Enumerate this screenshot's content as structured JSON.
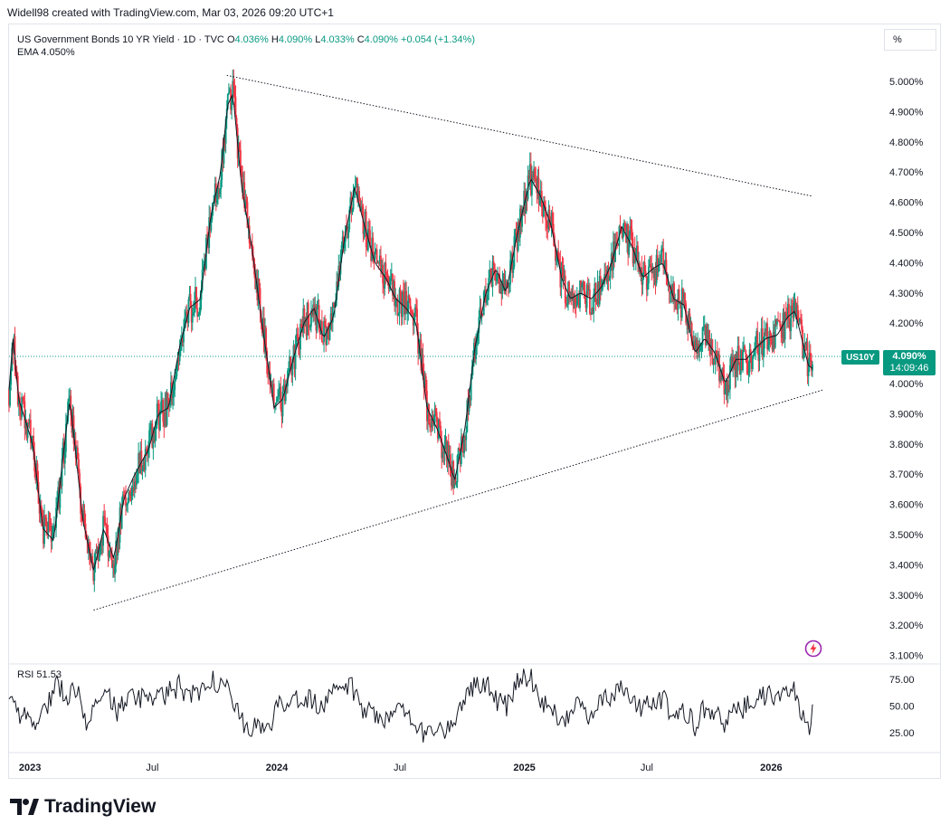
{
  "header": {
    "text": "Widell98 created with TradingView.com, Mar 03, 2026 09:20 UTC+1"
  },
  "legend": {
    "title": "US Government Bonds 10 YR Yield · 1D · TVC",
    "o_label": "O",
    "o_value": "4.036%",
    "h_label": "H",
    "h_value": "4.090%",
    "l_label": "L",
    "l_value": "4.033%",
    "c_label": "C",
    "c_value": "4.090%",
    "change": "+0.054 (+1.34%)",
    "ema_label": "EMA",
    "ema_value": "4.050%"
  },
  "scale_button": "%",
  "price_tag": {
    "symbol": "US10Y",
    "price": "4.090%",
    "countdown": "14:09:46"
  },
  "rsi": {
    "label": "RSI",
    "value": "51.53"
  },
  "brand": {
    "name": "TradingView"
  },
  "colors": {
    "up": "#089981",
    "down": "#f23645",
    "ema": "#131722",
    "rsi_line": "#131722",
    "grid_border": "#e0e3eb",
    "trendline": "#131722"
  },
  "icons": [
    "lightning-icon",
    "tradingview-logo-icon"
  ],
  "chart_data": [
    {
      "type": "candlestick",
      "title": "US Government Bonds 10 YR Yield · 1D · TVC",
      "y_axis_position": "right",
      "y_ticks": [
        "5.000%",
        "4.900%",
        "4.800%",
        "4.700%",
        "4.600%",
        "4.500%",
        "4.400%",
        "4.300%",
        "4.200%",
        "4.100%",
        "4.000%",
        "3.900%",
        "3.800%",
        "3.700%",
        "3.600%",
        "3.500%",
        "3.400%",
        "3.300%",
        "3.200%",
        "3.100%"
      ],
      "ylim": [
        3.08,
        5.05
      ],
      "x_ticks": [
        "2023",
        "Jul",
        "2024",
        "Jul",
        "2025",
        "Jul",
        "2026"
      ],
      "x_tick_dates": [
        "2023-01-01",
        "2023-07-01",
        "2024-01-01",
        "2024-07-01",
        "2025-01-01",
        "2025-07-01",
        "2026-01-01"
      ],
      "date_range": [
        "2022-12-01",
        "2026-03-03"
      ],
      "last_close": 4.09,
      "series": [
        {
          "name": "EMA",
          "anchors": [
            [
              "2022-12-01",
              3.98
            ],
            [
              "2022-12-07",
              4.15
            ],
            [
              "2022-12-15",
              3.95
            ],
            [
              "2023-01-05",
              3.8
            ],
            [
              "2023-01-20",
              3.52
            ],
            [
              "2023-02-05",
              3.48
            ],
            [
              "2023-02-20",
              3.78
            ],
            [
              "2023-03-01",
              3.95
            ],
            [
              "2023-03-20",
              3.55
            ],
            [
              "2023-04-05",
              3.38
            ],
            [
              "2023-04-20",
              3.52
            ],
            [
              "2023-05-05",
              3.42
            ],
            [
              "2023-05-20",
              3.62
            ],
            [
              "2023-06-05",
              3.7
            ],
            [
              "2023-06-25",
              3.78
            ],
            [
              "2023-07-10",
              3.9
            ],
            [
              "2023-07-25",
              3.92
            ],
            [
              "2023-08-10",
              4.12
            ],
            [
              "2023-08-25",
              4.25
            ],
            [
              "2023-09-10",
              4.28
            ],
            [
              "2023-09-25",
              4.55
            ],
            [
              "2023-10-10",
              4.7
            ],
            [
              "2023-10-20",
              4.92
            ],
            [
              "2023-10-28",
              4.96
            ],
            [
              "2023-11-10",
              4.65
            ],
            [
              "2023-11-25",
              4.45
            ],
            [
              "2023-12-10",
              4.2
            ],
            [
              "2023-12-28",
              3.92
            ],
            [
              "2024-01-10",
              3.95
            ],
            [
              "2024-01-25",
              4.08
            ],
            [
              "2024-02-10",
              4.2
            ],
            [
              "2024-02-25",
              4.25
            ],
            [
              "2024-03-10",
              4.15
            ],
            [
              "2024-03-25",
              4.22
            ],
            [
              "2024-04-10",
              4.48
            ],
            [
              "2024-04-25",
              4.65
            ],
            [
              "2024-05-10",
              4.52
            ],
            [
              "2024-05-25",
              4.4
            ],
            [
              "2024-06-10",
              4.35
            ],
            [
              "2024-06-25",
              4.28
            ],
            [
              "2024-07-10",
              4.25
            ],
            [
              "2024-07-25",
              4.2
            ],
            [
              "2024-08-10",
              3.92
            ],
            [
              "2024-08-25",
              3.85
            ],
            [
              "2024-09-10",
              3.75
            ],
            [
              "2024-09-20",
              3.68
            ],
            [
              "2024-10-05",
              3.85
            ],
            [
              "2024-10-20",
              4.12
            ],
            [
              "2024-11-05",
              4.3
            ],
            [
              "2024-11-20",
              4.38
            ],
            [
              "2024-12-05",
              4.3
            ],
            [
              "2024-12-20",
              4.48
            ],
            [
              "2025-01-10",
              4.68
            ],
            [
              "2025-01-25",
              4.62
            ],
            [
              "2025-02-10",
              4.52
            ],
            [
              "2025-02-25",
              4.35
            ],
            [
              "2025-03-10",
              4.28
            ],
            [
              "2025-03-25",
              4.3
            ],
            [
              "2025-04-10",
              4.28
            ],
            [
              "2025-04-25",
              4.32
            ],
            [
              "2025-05-10",
              4.4
            ],
            [
              "2025-05-25",
              4.52
            ],
            [
              "2025-06-10",
              4.45
            ],
            [
              "2025-06-25",
              4.35
            ],
            [
              "2025-07-10",
              4.38
            ],
            [
              "2025-07-25",
              4.4
            ],
            [
              "2025-08-10",
              4.28
            ],
            [
              "2025-08-25",
              4.26
            ],
            [
              "2025-09-10",
              4.1
            ],
            [
              "2025-09-25",
              4.15
            ],
            [
              "2025-10-10",
              4.1
            ],
            [
              "2025-10-25",
              4.0
            ],
            [
              "2025-11-10",
              4.08
            ],
            [
              "2025-11-25",
              4.08
            ],
            [
              "2025-12-10",
              4.12
            ],
            [
              "2025-12-25",
              4.15
            ],
            [
              "2026-01-10",
              4.16
            ],
            [
              "2026-01-25",
              4.22
            ],
            [
              "2026-02-05",
              4.24
            ],
            [
              "2026-02-15",
              4.15
            ],
            [
              "2026-02-25",
              4.06
            ],
            [
              "2026-03-03",
              4.05
            ]
          ]
        },
        {
          "name": "RSI",
          "ticks": [
            "75.00",
            "50.00",
            "25.00"
          ],
          "ylim": [
            10,
            90
          ],
          "anchors": [
            [
              "2022-12-01",
              55
            ],
            [
              "2022-12-20",
              40
            ],
            [
              "2023-01-10",
              35
            ],
            [
              "2023-01-25",
              50
            ],
            [
              "2023-02-10",
              72
            ],
            [
              "2023-02-25",
              60
            ],
            [
              "2023-03-10",
              68
            ],
            [
              "2023-03-25",
              38
            ],
            [
              "2023-04-10",
              48
            ],
            [
              "2023-04-25",
              62
            ],
            [
              "2023-05-10",
              44
            ],
            [
              "2023-05-25",
              58
            ],
            [
              "2023-06-10",
              55
            ],
            [
              "2023-06-25",
              65
            ],
            [
              "2023-07-10",
              55
            ],
            [
              "2023-07-25",
              62
            ],
            [
              "2023-08-10",
              70
            ],
            [
              "2023-08-25",
              56
            ],
            [
              "2023-09-10",
              66
            ],
            [
              "2023-09-25",
              74
            ],
            [
              "2023-10-10",
              70
            ],
            [
              "2023-10-20",
              80
            ],
            [
              "2023-11-05",
              40
            ],
            [
              "2023-11-20",
              32
            ],
            [
              "2023-12-05",
              28
            ],
            [
              "2023-12-20",
              30
            ],
            [
              "2024-01-05",
              50
            ],
            [
              "2024-01-20",
              58
            ],
            [
              "2024-02-05",
              60
            ],
            [
              "2024-02-20",
              55
            ],
            [
              "2024-03-05",
              48
            ],
            [
              "2024-03-20",
              56
            ],
            [
              "2024-04-05",
              70
            ],
            [
              "2024-04-20",
              68
            ],
            [
              "2024-05-05",
              50
            ],
            [
              "2024-05-20",
              44
            ],
            [
              "2024-06-05",
              38
            ],
            [
              "2024-06-20",
              46
            ],
            [
              "2024-07-05",
              45
            ],
            [
              "2024-07-20",
              38
            ],
            [
              "2024-08-05",
              24
            ],
            [
              "2024-08-20",
              30
            ],
            [
              "2024-09-05",
              28
            ],
            [
              "2024-09-20",
              35
            ],
            [
              "2024-10-05",
              60
            ],
            [
              "2024-10-20",
              70
            ],
            [
              "2024-11-05",
              72
            ],
            [
              "2024-11-20",
              55
            ],
            [
              "2024-12-05",
              50
            ],
            [
              "2024-12-20",
              72
            ],
            [
              "2025-01-10",
              80
            ],
            [
              "2025-01-25",
              55
            ],
            [
              "2025-02-10",
              48
            ],
            [
              "2025-02-25",
              38
            ],
            [
              "2025-03-10",
              45
            ],
            [
              "2025-03-25",
              52
            ],
            [
              "2025-04-10",
              38
            ],
            [
              "2025-04-25",
              56
            ],
            [
              "2025-05-10",
              58
            ],
            [
              "2025-05-25",
              66
            ],
            [
              "2025-06-10",
              54
            ],
            [
              "2025-06-25",
              48
            ],
            [
              "2025-07-10",
              56
            ],
            [
              "2025-07-25",
              58
            ],
            [
              "2025-08-10",
              40
            ],
            [
              "2025-08-25",
              45
            ],
            [
              "2025-09-10",
              32
            ],
            [
              "2025-09-25",
              48
            ],
            [
              "2025-10-10",
              45
            ],
            [
              "2025-10-25",
              30
            ],
            [
              "2025-11-10",
              50
            ],
            [
              "2025-11-25",
              48
            ],
            [
              "2025-12-10",
              58
            ],
            [
              "2025-12-25",
              60
            ],
            [
              "2026-01-10",
              55
            ],
            [
              "2026-01-25",
              68
            ],
            [
              "2026-02-05",
              65
            ],
            [
              "2026-02-15",
              38
            ],
            [
              "2026-02-25",
              28
            ],
            [
              "2026-03-01",
              35
            ],
            [
              "2026-03-03",
              51.53
            ]
          ]
        }
      ],
      "trendlines": [
        {
          "from": [
            "2023-10-19",
            5.02
          ],
          "to": [
            "2026-03-03",
            4.62
          ]
        },
        {
          "from": [
            "2023-04-05",
            3.25
          ],
          "to": [
            "2026-03-20",
            3.98
          ]
        }
      ]
    }
  ]
}
